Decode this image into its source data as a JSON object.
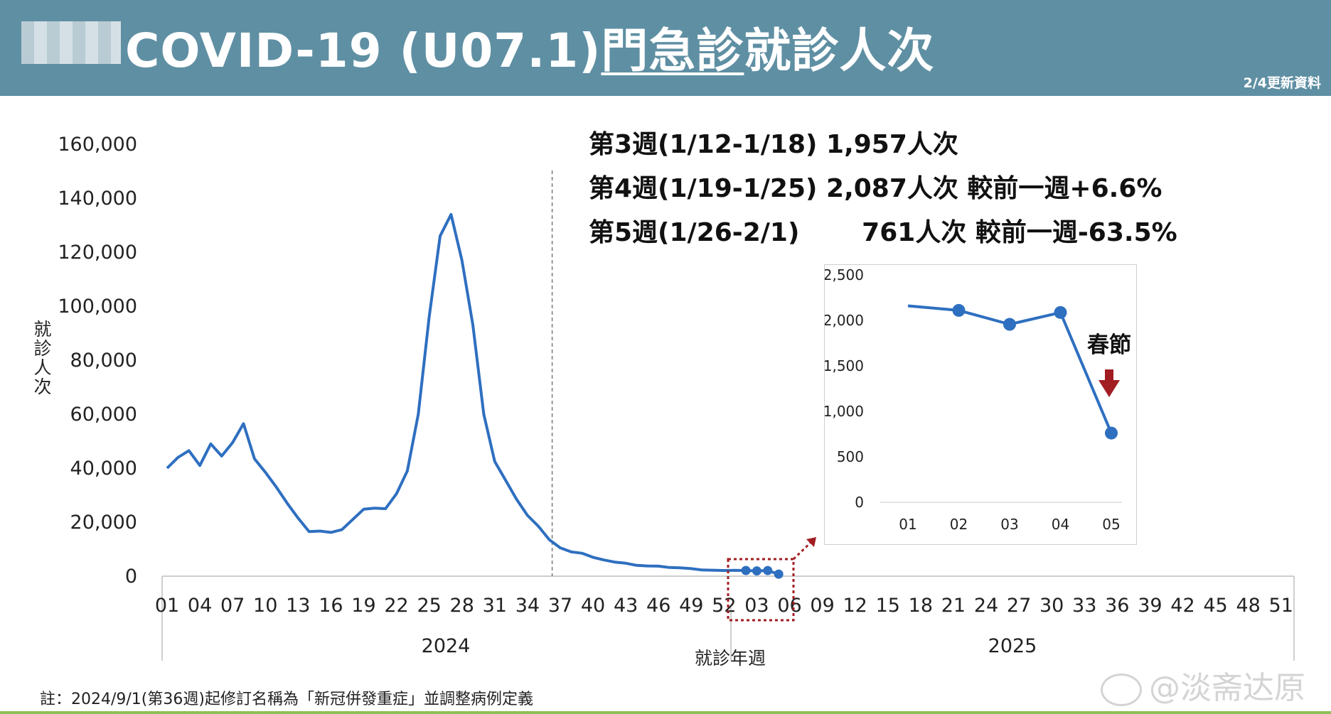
{
  "header": {
    "title_prefix": "COVID-19 (U07.1)",
    "title_underlined": "門急診",
    "title_suffix": "就診人次",
    "update_note": "2/4更新資料"
  },
  "summary_lines": [
    "第3週(1/12-1/18) 1,957人次",
    "第4週(1/19-1/25) 2,087人次 較前一週+6.6%",
    "第5週(1/26-2/1)       761人次 較前一週-63.5%"
  ],
  "footnote": "註：2024/9/1(第36週)起修訂名稱為「新冠併發重症」並調整病例定義",
  "watermark": "@淡斋达原",
  "colors": {
    "banner": "#5f8fa3",
    "line": "#2e6fc0",
    "annotation": "#a11d22"
  },
  "chart_data": [
    {
      "type": "line",
      "ylabel": "就診人次",
      "xlabel": "就診年週",
      "ylim": [
        0,
        160000
      ],
      "yticks": [
        "0",
        "20,000",
        "40,000",
        "60,000",
        "80,000",
        "100,000",
        "120,000",
        "140,000",
        "160,000"
      ],
      "x_tick_labels": [
        "01",
        "04",
        "07",
        "10",
        "13",
        "16",
        "19",
        "22",
        "25",
        "28",
        "31",
        "34",
        "37",
        "40",
        "43",
        "46",
        "49",
        "52",
        "03",
        "06",
        "09",
        "12",
        "15",
        "18",
        "21",
        "24",
        "27",
        "30",
        "33",
        "36",
        "39",
        "42",
        "45",
        "48",
        "51"
      ],
      "year_labels": [
        "2024",
        "2025"
      ],
      "week_count": 52,
      "divider_week_2024": 36,
      "series": [
        {
          "year": "2024",
          "values": [
            40000,
            44000,
            46500,
            41000,
            49000,
            44500,
            49500,
            56500,
            43500,
            38500,
            33000,
            27000,
            21500,
            16500,
            16700,
            16200,
            17200,
            21000,
            24800,
            25200,
            25000,
            30500,
            39000,
            60000,
            96000,
            126000,
            134000,
            117000,
            93000,
            60000,
            42500,
            35500,
            28500,
            22500,
            18500,
            13500,
            10500,
            9000,
            8500,
            7000,
            6000,
            5200,
            4800,
            4000,
            3800,
            3700,
            3200,
            3100,
            2800,
            2300,
            2200,
            2100
          ],
          "markers": false
        },
        {
          "year": "2025",
          "values": [
            2160,
            2110,
            1957,
            2087,
            761
          ],
          "markers": true
        }
      ],
      "dashed_divider": "2024週36"
    },
    {
      "type": "line",
      "categories": [
        "01",
        "02",
        "03",
        "04",
        "05"
      ],
      "values": [
        2160,
        2110,
        1957,
        2087,
        761
      ],
      "ylim": [
        0,
        2500
      ],
      "yticks": [
        "0",
        "500",
        "1,000",
        "1,500",
        "2,000",
        "2,500"
      ],
      "annotation": "春節"
    }
  ]
}
